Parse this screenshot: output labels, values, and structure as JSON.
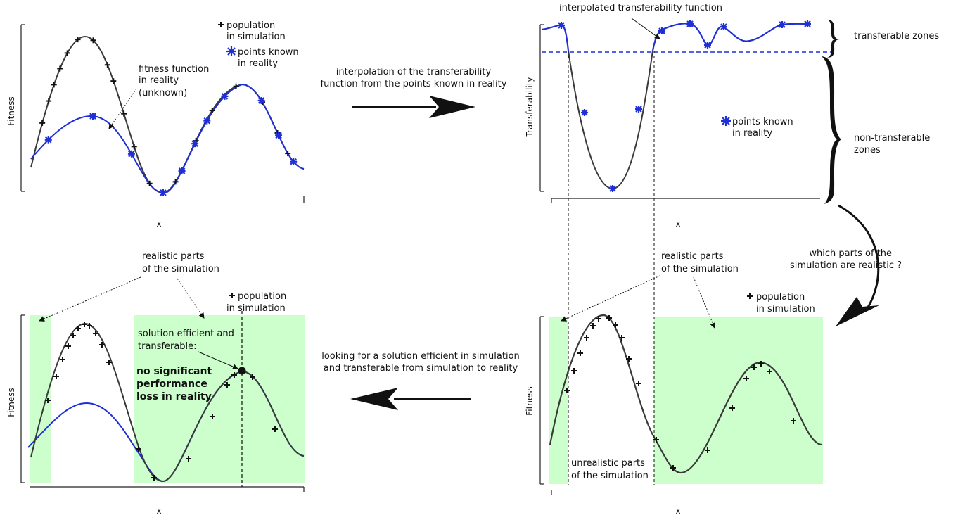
{
  "colors": {
    "curve": "#3a3a3a",
    "reality": "#1f2fd6",
    "highlight": "#ccffcc",
    "axis": "#222222"
  },
  "panel_tl": {
    "xlabel": "x",
    "ylabel": "Fitness",
    "legend_plus_1": "population",
    "legend_plus_2": "in simulation",
    "legend_star_1": "points known",
    "legend_star_2": "in reality",
    "note_1": "fitness function",
    "note_2": "in reality",
    "note_3": "(unknown)"
  },
  "panel_tr": {
    "xlabel": "x",
    "ylabel": "Transferability",
    "top_note": "interpolated transferability function",
    "legend_star_1": "points known",
    "legend_star_2": "in reality",
    "zone_top": "transferable zones",
    "zone_bottom_1": "non-transferable",
    "zone_bottom_2": "zones"
  },
  "panel_br": {
    "xlabel": "x",
    "ylabel": "Fitness",
    "realistic_1": "realistic parts",
    "realistic_2": "of the simulation",
    "unrealistic_1": "unrealistic parts",
    "unrealistic_2": "of the simulation",
    "legend_plus_1": "population",
    "legend_plus_2": "in simulation"
  },
  "panel_bl": {
    "xlabel": "x",
    "ylabel": "Fitness",
    "realistic_1": "realistic parts",
    "realistic_2": "of the simulation",
    "legend_plus_1": "population",
    "legend_plus_2": "in simulation",
    "solution_1": "solution efficient and",
    "solution_2": "transferable:",
    "bold_1": "no significant",
    "bold_2": "performance",
    "bold_3": "loss in reality"
  },
  "arrows": {
    "top_1": "interpolation of the transferability",
    "top_2": "function from the points known in reality",
    "right_1": "which parts  of  the",
    "right_2": "simulation are realistic ?",
    "bottom_1": "looking for a solution efficient in simulation",
    "bottom_2": "and transferable from simulation to reality"
  }
}
